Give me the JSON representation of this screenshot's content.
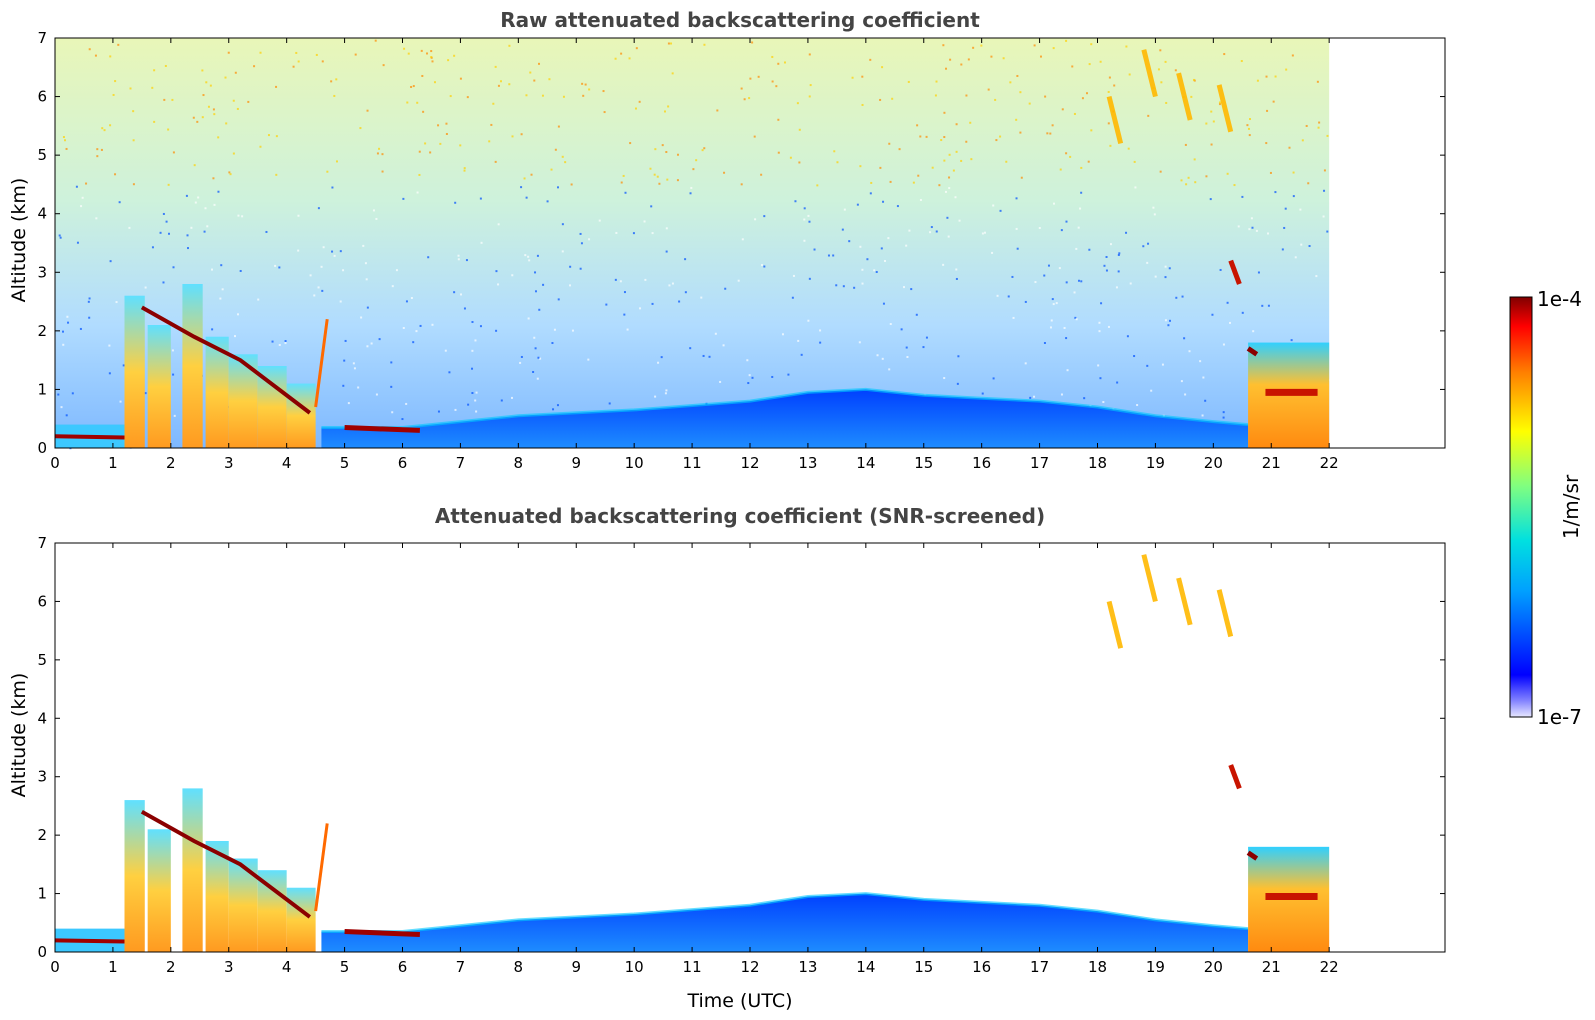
{
  "chart_data": [
    {
      "type": "heatmap",
      "title": "Raw attenuated backscattering coefficient",
      "xlabel": "",
      "ylabel": "Altitude (km)",
      "xlim": [
        0,
        24
      ],
      "ylim": [
        0,
        7
      ],
      "x_ticks": [
        "0",
        "1",
        "2",
        "3",
        "4",
        "5",
        "6",
        "7",
        "8",
        "9",
        "10",
        "11",
        "12",
        "13",
        "14",
        "15",
        "16",
        "17",
        "18",
        "19",
        "20",
        "21",
        "22"
      ],
      "y_ticks": [
        "0",
        "1",
        "2",
        "3",
        "4",
        "5",
        "6",
        "7"
      ],
      "data_end_time": 22,
      "features": [
        {
          "kind": "boundary_layer",
          "x": [
            4.6,
            6,
            8,
            10,
            12,
            13,
            14,
            15,
            16,
            17,
            18,
            19,
            20,
            20.6
          ],
          "y": [
            0.35,
            0.35,
            0.55,
            0.65,
            0.8,
            0.95,
            1.0,
            0.9,
            0.85,
            0.8,
            0.7,
            0.55,
            0.45,
            0.4
          ]
        },
        {
          "kind": "cloud_field",
          "x_start": 0,
          "x_end": 4.5,
          "top": 2.8
        },
        {
          "kind": "dense_cloud",
          "x_start": 20.6,
          "x_end": 22,
          "top": 1.8
        },
        {
          "kind": "cirrus",
          "x": [
            18.3,
            18.9,
            19.5,
            20.2
          ],
          "altitude": [
            5.5,
            6.3,
            5.9,
            5.7
          ]
        }
      ]
    },
    {
      "type": "heatmap",
      "title": "Attenuated backscattering coefficient (SNR-screened)",
      "xlabel": "Time (UTC)",
      "ylabel": "Altitude (km)",
      "xlim": [
        0,
        24
      ],
      "ylim": [
        0,
        7
      ],
      "x_ticks": [
        "0",
        "1",
        "2",
        "3",
        "4",
        "5",
        "6",
        "7",
        "8",
        "9",
        "10",
        "11",
        "12",
        "13",
        "14",
        "15",
        "16",
        "17",
        "18",
        "19",
        "20",
        "21",
        "22"
      ],
      "y_ticks": [
        "0",
        "1",
        "2",
        "3",
        "4",
        "5",
        "6",
        "7"
      ],
      "data_end_time": 22
    }
  ],
  "colorbar": {
    "label": "1/m/sr",
    "max_label": "1e-4",
    "min_label": "1e-7",
    "scale": "log",
    "colormap": "jet"
  }
}
